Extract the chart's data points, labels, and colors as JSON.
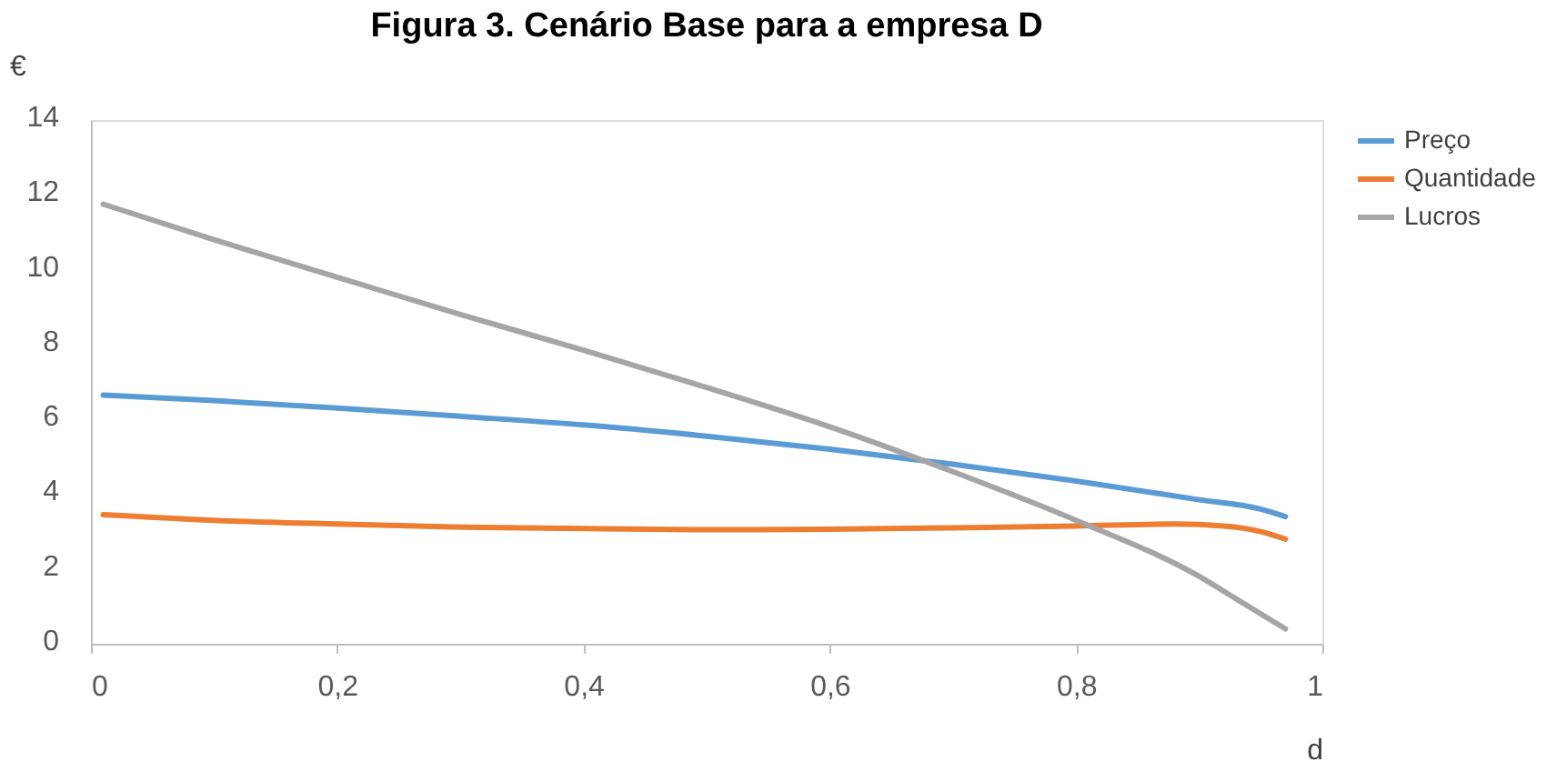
{
  "chart_data": {
    "type": "line",
    "title": "Figura 3. Cenário Base para a empresa D",
    "xlabel": "d",
    "ylabel": "€",
    "xlim": [
      0,
      1
    ],
    "xticks": [
      {
        "value": 0,
        "label": "0"
      },
      {
        "value": 0.2,
        "label": "0,2"
      },
      {
        "value": 0.4,
        "label": "0,4"
      },
      {
        "value": 0.6,
        "label": "0,6"
      },
      {
        "value": 0.8,
        "label": "0,8"
      },
      {
        "value": 1,
        "label": "1"
      }
    ],
    "ylim": [
      0,
      14
    ],
    "yticks": [
      0,
      2,
      4,
      6,
      8,
      10,
      12,
      14
    ],
    "grid": false,
    "legend": "right",
    "marker": "none",
    "line_style": "solid",
    "series": [
      {
        "name": "Preço",
        "color": "#5b9bd5",
        "x": [
          0.01,
          0.1,
          0.2,
          0.3,
          0.4,
          0.5,
          0.6,
          0.7,
          0.8,
          0.9,
          0.95,
          0.97
        ],
        "values": [
          6.65,
          6.5,
          6.3,
          6.08,
          5.85,
          5.55,
          5.2,
          4.8,
          4.35,
          3.85,
          3.6,
          3.4
        ]
      },
      {
        "name": "Quantidade",
        "color": "#ed7d31",
        "x": [
          0.01,
          0.1,
          0.2,
          0.3,
          0.4,
          0.5,
          0.6,
          0.7,
          0.8,
          0.88,
          0.92,
          0.95,
          0.97
        ],
        "values": [
          3.45,
          3.3,
          3.2,
          3.12,
          3.08,
          3.05,
          3.06,
          3.1,
          3.15,
          3.2,
          3.15,
          3.0,
          2.8
        ]
      },
      {
        "name": "Lucros",
        "color": "#a5a5a5",
        "x": [
          0.01,
          0.1,
          0.2,
          0.3,
          0.4,
          0.5,
          0.6,
          0.7,
          0.8,
          0.9,
          0.93,
          0.97
        ],
        "values": [
          11.75,
          10.8,
          9.8,
          8.8,
          7.85,
          6.85,
          5.8,
          4.6,
          3.3,
          1.8,
          1.2,
          0.4
        ]
      }
    ]
  }
}
